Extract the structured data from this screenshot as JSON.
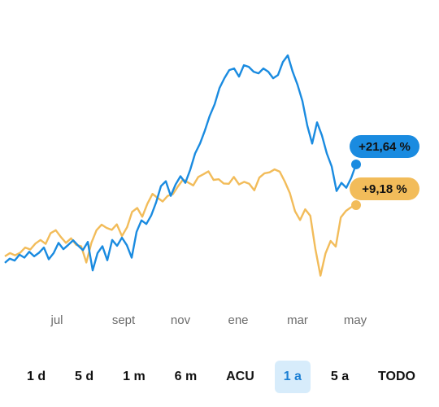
{
  "chart_data": {
    "type": "line",
    "x_tick_labels": [
      "jul",
      "sept",
      "nov",
      "ene",
      "mar",
      "may"
    ],
    "ylabel": "",
    "series": [
      {
        "color": "#1a8be0",
        "badge": "+21,64 %",
        "final_value": 21.64,
        "values": [
          -8.5,
          -7.2,
          -7.8,
          -6.0,
          -6.9,
          -5.1,
          -6.5,
          -5.4,
          -3.8,
          -7.4,
          -5.5,
          -2.4,
          -4.3,
          -3.0,
          -1.6,
          -3.2,
          -4.6,
          -2.1,
          -10.8,
          -5.5,
          -3.4,
          -7.7,
          -1.5,
          -3.3,
          -0.8,
          -3.1,
          -6.9,
          1.0,
          4.5,
          3.4,
          6.0,
          10.0,
          15.0,
          16.5,
          12.0,
          15.5,
          18.0,
          16.0,
          20.0,
          25.0,
          28.0,
          32.0,
          36.5,
          40.0,
          45.0,
          48.0,
          50.5,
          51.0,
          48.5,
          52.0,
          51.5,
          50.0,
          49.5,
          51.0,
          50.0,
          48.0,
          49.0,
          53.0,
          55.0,
          50.0,
          46.0,
          41.0,
          33.5,
          28.0,
          34.5,
          30.5,
          25.0,
          21.0,
          13.5,
          16.0,
          14.5,
          17.5,
          21.64
        ]
      },
      {
        "color": "#f2bc5a",
        "badge": "+9,18 %",
        "final_value": 9.18,
        "values": [
          -6.5,
          -5.5,
          -6.2,
          -5.4,
          -3.8,
          -4.4,
          -2.6,
          -1.5,
          -2.7,
          0.6,
          1.5,
          -0.6,
          -2.4,
          -1.0,
          -3.0,
          -3.4,
          -8.4,
          -2.4,
          1.5,
          3.2,
          2.2,
          1.6,
          3.3,
          -0.3,
          2.4,
          7.1,
          8.3,
          5.6,
          9.6,
          12.6,
          11.4,
          10.3,
          12.0,
          12.5,
          14.9,
          17.0,
          16.1,
          15.2,
          17.8,
          18.6,
          19.5,
          16.9,
          17.1,
          15.8,
          15.7,
          17.8,
          15.5,
          16.3,
          15.7,
          13.7,
          17.6,
          18.9,
          19.2,
          20.1,
          19.4,
          16.4,
          12.8,
          7.3,
          4.6,
          7.9,
          5.9,
          -4.2,
          -12.4,
          -5.6,
          -1.8,
          -3.5,
          5.4,
          7.4,
          8.5,
          9.18
        ]
      }
    ]
  },
  "range_selector": {
    "buttons": [
      "1 d",
      "5 d",
      "1 m",
      "6 m",
      "ACU",
      "1 a",
      "5 a",
      "TODO"
    ],
    "active": "1 a"
  }
}
